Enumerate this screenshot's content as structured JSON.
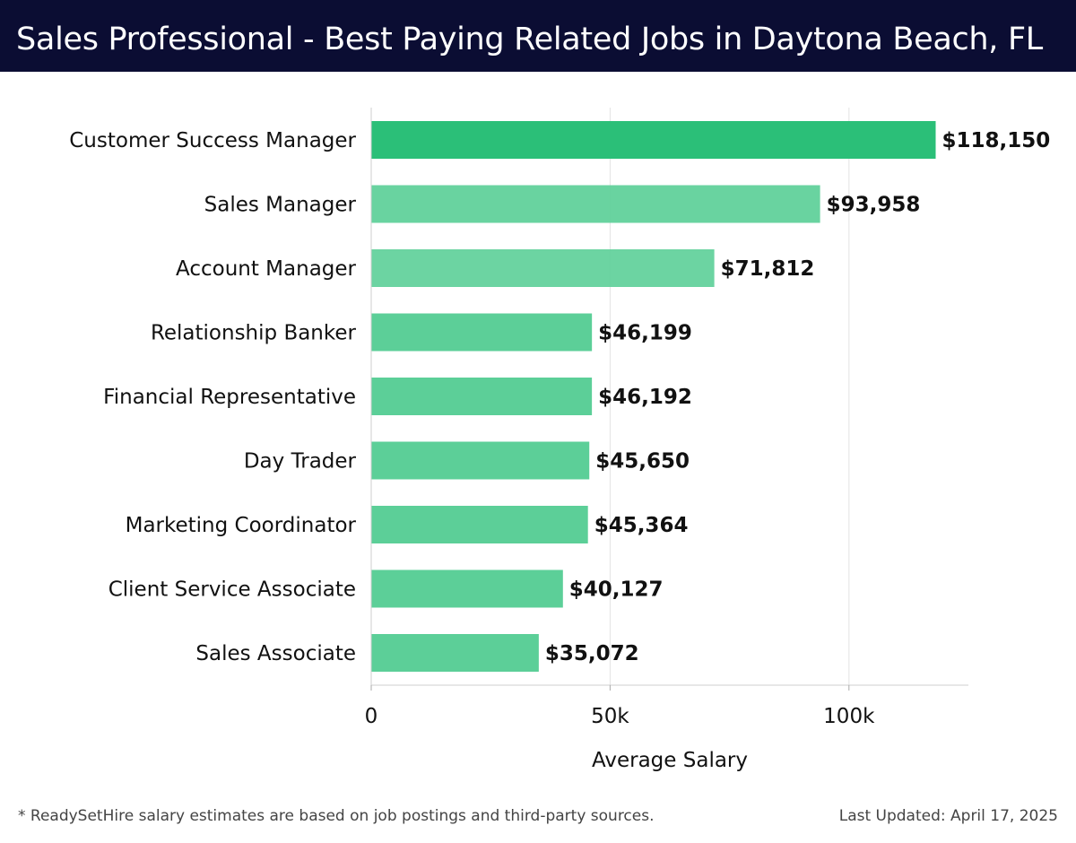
{
  "header": {
    "title": "Sales Professional - Best Paying Related Jobs in Daytona Beach, FL"
  },
  "footer": {
    "note": "* ReadySetHire salary estimates are based on job postings and third-party sources.",
    "updated": "Last Updated: April 17, 2025"
  },
  "colors": {
    "title_background": "#0b0d33",
    "bar_top": "#2bbf78",
    "bar_light": "#5ccf98"
  },
  "chart_data": {
    "type": "bar",
    "orientation": "horizontal",
    "categories": [
      "Customer Success Manager",
      "Sales Manager",
      "Account Manager",
      "Relationship Banker",
      "Financial Representative",
      "Day Trader",
      "Marketing Coordinator",
      "Client Service Associate",
      "Sales Associate"
    ],
    "values": [
      118150,
      93958,
      71812,
      46199,
      46192,
      45650,
      45364,
      40127,
      35072
    ],
    "value_labels": [
      "$118,150",
      "$93,958",
      "$71,812",
      "$46,199",
      "$46,192",
      "$45,650",
      "$45,364",
      "$40,127",
      "$35,072"
    ],
    "xlabel": "Average Salary",
    "ylabel": "",
    "xlim": [
      0,
      125000
    ],
    "xticks": [
      0,
      50000,
      100000
    ],
    "xtick_labels": [
      "0",
      "50k",
      "100k"
    ],
    "grid": "vertical"
  }
}
